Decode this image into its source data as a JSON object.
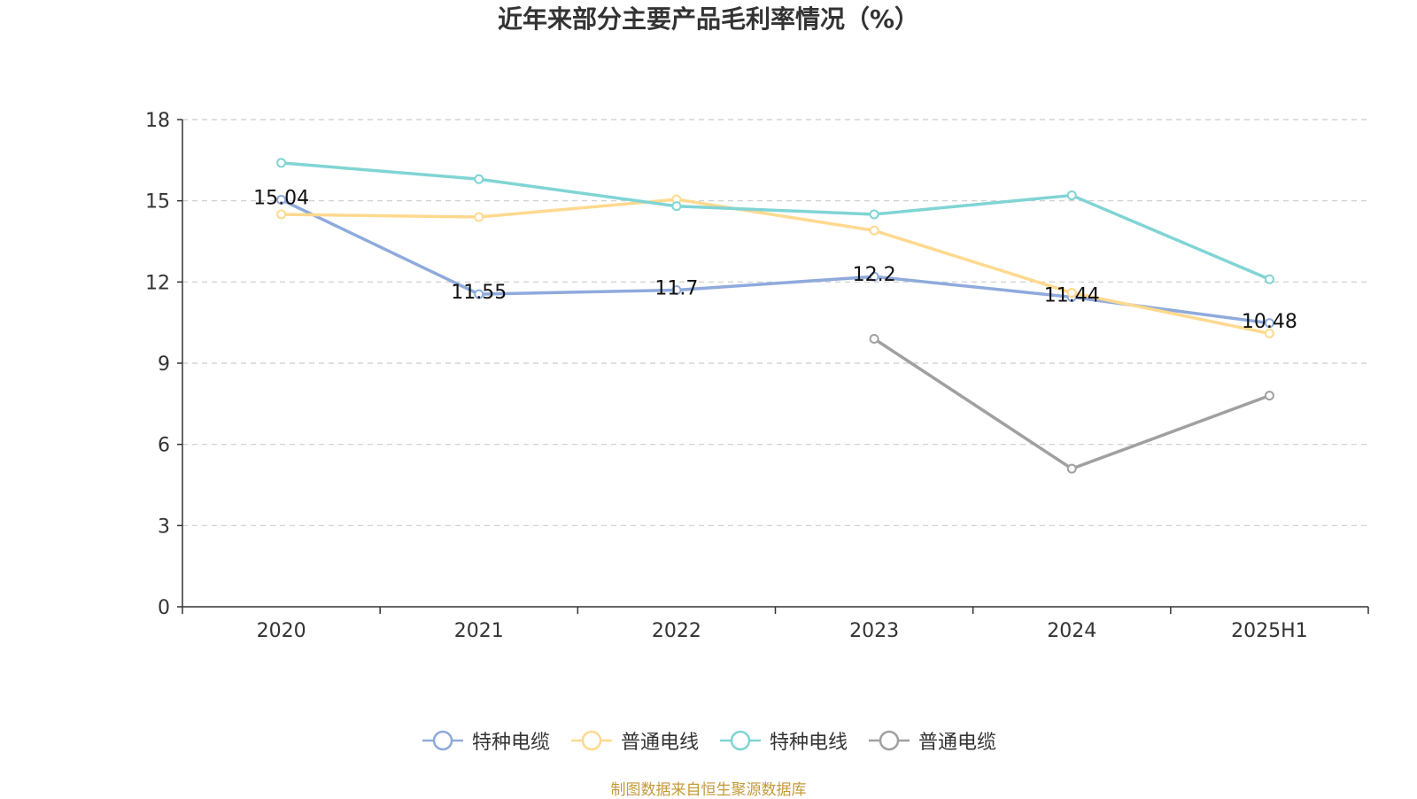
{
  "chart_data": {
    "type": "line",
    "title": "近年来部分主要产品毛利率情况（%）",
    "categories": [
      "2020",
      "2021",
      "2022",
      "2023",
      "2024",
      "2025H1"
    ],
    "ylim": [
      0,
      18
    ],
    "yticks": [
      0,
      3,
      6,
      9,
      12,
      15,
      18
    ],
    "grid": true,
    "legend_position": "bottom",
    "series": [
      {
        "name": "特种电缆",
        "color": "#8faadc",
        "values": [
          15.04,
          11.55,
          11.7,
          12.2,
          11.44,
          10.48
        ],
        "data_labels": [
          "15.04",
          "11.55",
          "11.7",
          "12.2",
          "11.44",
          "10.48"
        ]
      },
      {
        "name": "普通电线",
        "color": "#ffd98f",
        "values": [
          14.5,
          14.4,
          15.05,
          13.9,
          11.6,
          10.1
        ]
      },
      {
        "name": "特种电线",
        "color": "#80d4d4",
        "values": [
          16.4,
          15.8,
          14.8,
          14.5,
          15.2,
          12.1
        ]
      },
      {
        "name": "普通电缆",
        "color": "#a0a0a0",
        "values": [
          null,
          null,
          null,
          9.9,
          5.1,
          7.8
        ]
      }
    ]
  },
  "source_note": "制图数据来自恒生聚源数据库"
}
